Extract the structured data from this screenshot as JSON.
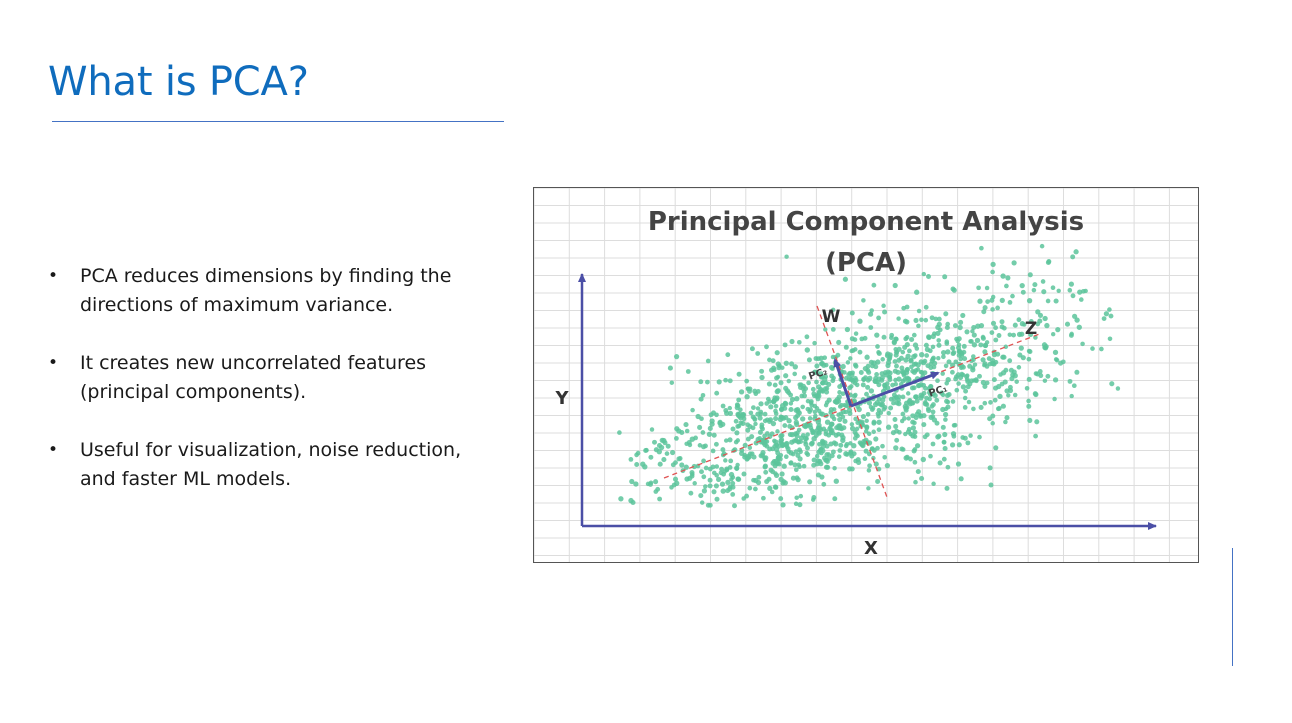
{
  "slide": {
    "title": "What is PCA?",
    "bullets": [
      "PCA reduces dimensions by finding the directions of maximum variance.",
      "It creates new uncorrelated features (principal components).",
      "Useful for visualization, noise reduction, and faster ML models."
    ]
  },
  "figure": {
    "title_line1": "Principal Component Analysis",
    "title_line2": "(PCA)",
    "x_axis_label": "X",
    "y_axis_label": "Y",
    "line_w_label": "W",
    "line_z_label": "Z",
    "pc1_label": "PC₁",
    "pc2_label": "PC₂",
    "colors": {
      "points": "#5cc49b",
      "axes": "#4b4fa6",
      "guides": "#e05353",
      "grid": "#dddddd"
    }
  }
}
